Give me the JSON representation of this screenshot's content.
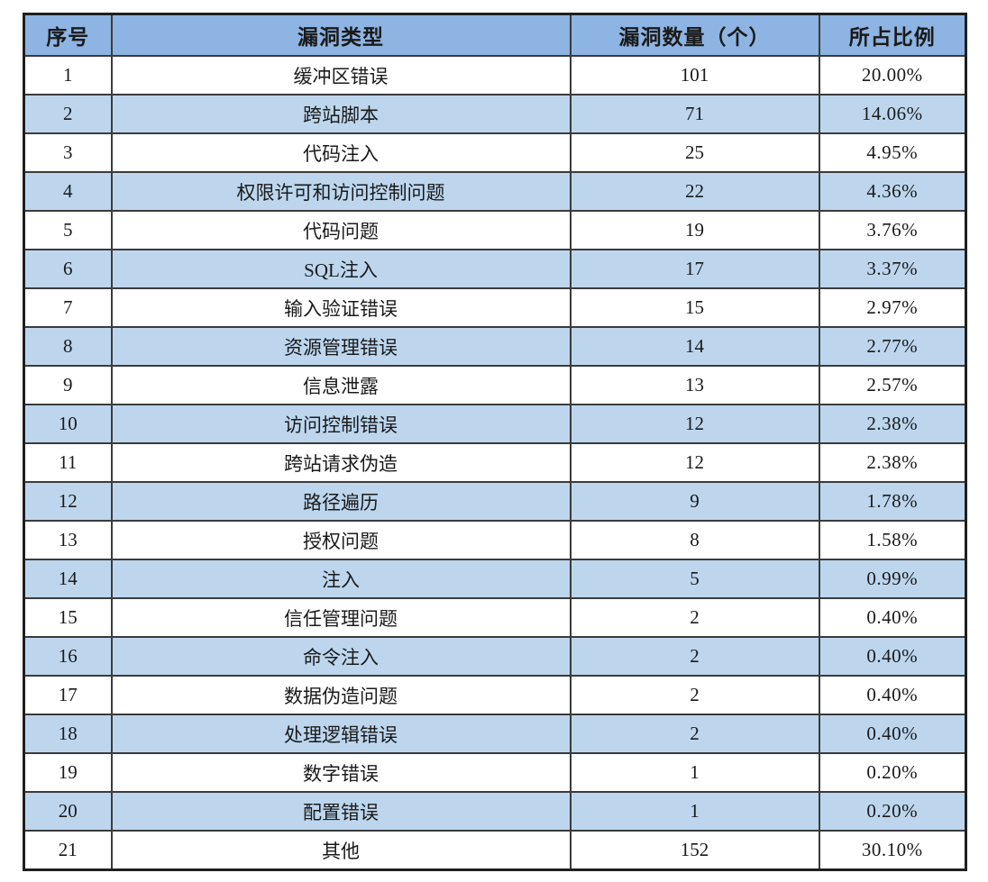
{
  "style": {
    "header_bg": "#8DB4E2",
    "stripe_bg": "#BDD6EE",
    "row_bg": "#FFFFFF",
    "border_color": "#3B3B3B",
    "border_outer": "#1F1F1F",
    "text_color": "#1A1A1A"
  },
  "chart_data": {
    "type": "table",
    "columns": [
      "序号",
      "漏洞类型",
      "漏洞数量（个）",
      "所占比例"
    ],
    "rows": [
      [
        "1",
        "缓冲区错误",
        "101",
        "20.00%"
      ],
      [
        "2",
        "跨站脚本",
        "71",
        "14.06%"
      ],
      [
        "3",
        "代码注入",
        "25",
        "4.95%"
      ],
      [
        "4",
        "权限许可和访问控制问题",
        "22",
        "4.36%"
      ],
      [
        "5",
        "代码问题",
        "19",
        "3.76%"
      ],
      [
        "6",
        "SQL注入",
        "17",
        "3.37%"
      ],
      [
        "7",
        "输入验证错误",
        "15",
        "2.97%"
      ],
      [
        "8",
        "资源管理错误",
        "14",
        "2.77%"
      ],
      [
        "9",
        "信息泄露",
        "13",
        "2.57%"
      ],
      [
        "10",
        "访问控制错误",
        "12",
        "2.38%"
      ],
      [
        "11",
        "跨站请求伪造",
        "12",
        "2.38%"
      ],
      [
        "12",
        "路径遍历",
        "9",
        "1.78%"
      ],
      [
        "13",
        "授权问题",
        "8",
        "1.58%"
      ],
      [
        "14",
        "注入",
        "5",
        "0.99%"
      ],
      [
        "15",
        "信任管理问题",
        "2",
        "0.40%"
      ],
      [
        "16",
        "命令注入",
        "2",
        "0.40%"
      ],
      [
        "17",
        "数据伪造问题",
        "2",
        "0.40%"
      ],
      [
        "18",
        "处理逻辑错误",
        "2",
        "0.40%"
      ],
      [
        "19",
        "数字错误",
        "1",
        "0.20%"
      ],
      [
        "20",
        "配置错误",
        "1",
        "0.20%"
      ],
      [
        "21",
        "其他",
        "152",
        "30.10%"
      ]
    ]
  }
}
